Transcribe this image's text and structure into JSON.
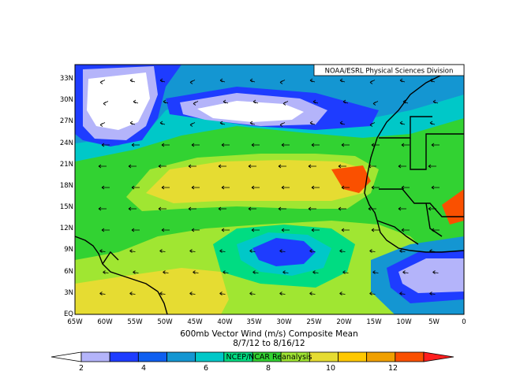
{
  "credit": "NOAA/ESRL Physical Sciences Division",
  "title_line1": "600mb Vector Wind (m/s) Composite Mean",
  "title_line2": "8/7/12  to 8/16/12",
  "source_label": "NCEP/NCAR Reanalysis",
  "lat_labels": [
    "33N",
    "30N",
    "27N",
    "24N",
    "21N",
    "18N",
    "15N",
    "12N",
    "9N",
    "6N",
    "3N",
    "EQ"
  ],
  "lon_labels": [
    "65W",
    "60W",
    "55W",
    "50W",
    "45W",
    "40W",
    "35W",
    "30W",
    "25W",
    "20W",
    "15W",
    "10W",
    "5W",
    "0"
  ],
  "colorbar": {
    "tick_labels": [
      "2",
      "4",
      "6",
      "8",
      "10",
      "12"
    ],
    "colors": [
      "#ffffff",
      "#b4b4fa",
      "#1e3cff",
      "#0f5ff0",
      "#1496d2",
      "#00c8c8",
      "#00dc82",
      "#32d232",
      "#a0e632",
      "#e6dc32",
      "#ffc800",
      "#f0a000",
      "#fa5000",
      "#ff1e1e"
    ]
  },
  "map_colors": {
    "c2": "#ffffff",
    "c2_3": "#b4b4fa",
    "c3_4": "#1e3cff",
    "c4_5": "#0f5ff0",
    "c5_6": "#1496d2",
    "c6_7": "#00c8c8",
    "c7_8": "#00dc82",
    "c8_9": "#32d232",
    "c9_10": "#a0e632",
    "c10_11": "#e6dc32",
    "c11_12": "#ffc800",
    "c12_13": "#f0a000",
    "c13_14": "#fa5000"
  }
}
